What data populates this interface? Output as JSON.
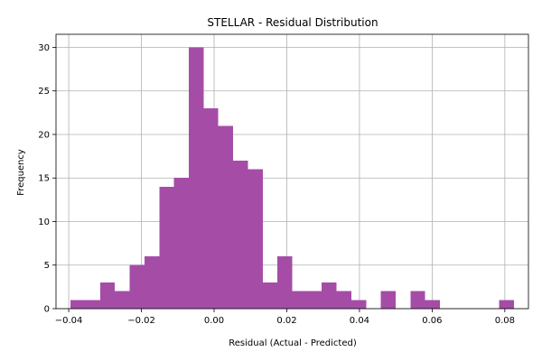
{
  "chart_data": {
    "type": "bar",
    "subtype": "histogram",
    "title": "STELLAR - Residual Distribution",
    "xlabel": "Residual (Actual - Predicted)",
    "ylabel": "Frequency",
    "xlim": [
      -0.0435,
      0.0865
    ],
    "ylim": [
      0,
      31.5
    ],
    "grid": true,
    "bar_color": "#a349a4",
    "x_ticks": [
      -0.04,
      -0.02,
      0.0,
      0.02,
      0.04,
      0.06,
      0.08
    ],
    "x_tick_labels": [
      "−0.04",
      "−0.02",
      "0.00",
      "0.02",
      "0.04",
      "0.06",
      "0.08"
    ],
    "y_ticks": [
      0,
      5,
      10,
      15,
      20,
      25,
      30
    ],
    "y_tick_labels": [
      "0",
      "5",
      "10",
      "15",
      "20",
      "25",
      "30"
    ],
    "bin_start": -0.0395,
    "bin_width": 0.0040667,
    "counts": [
      1,
      1,
      3,
      2,
      5,
      6,
      14,
      15,
      30,
      23,
      21,
      17,
      16,
      3,
      6,
      2,
      2,
      3,
      2,
      1,
      0,
      2,
      0,
      2,
      1,
      0,
      0,
      0,
      0,
      1
    ]
  }
}
